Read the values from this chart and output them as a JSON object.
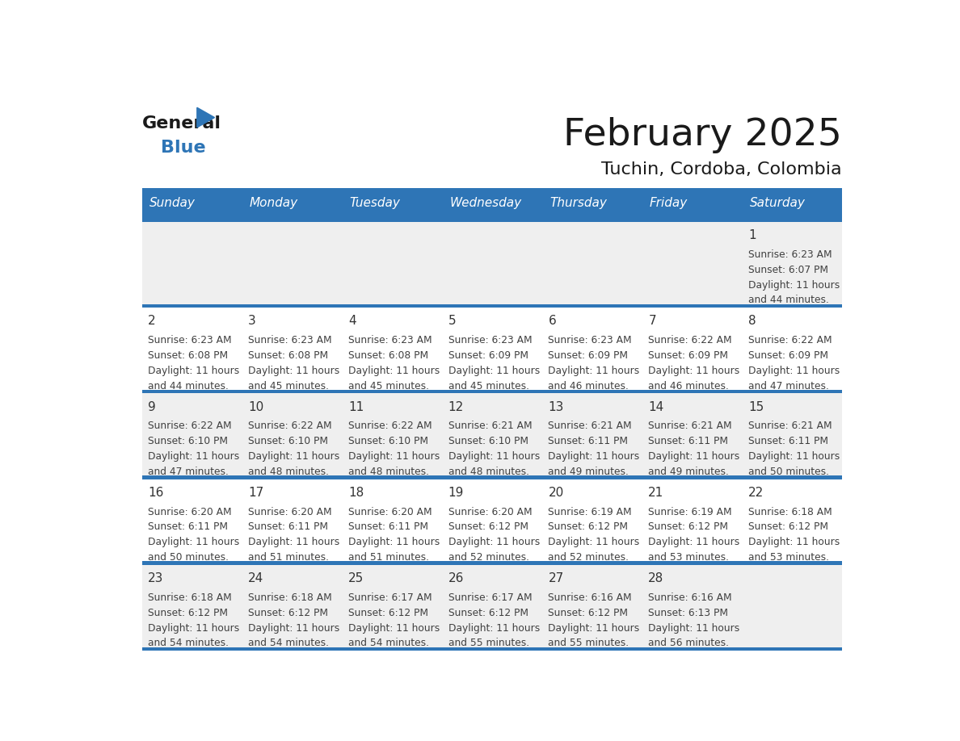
{
  "title": "February 2025",
  "subtitle": "Tuchin, Cordoba, Colombia",
  "days_of_week": [
    "Sunday",
    "Monday",
    "Tuesday",
    "Wednesday",
    "Thursday",
    "Friday",
    "Saturday"
  ],
  "header_bg": "#2E75B6",
  "header_text_color": "#FFFFFF",
  "cell_bg_odd": "#EFEFEF",
  "cell_bg_even": "#FFFFFF",
  "row_separator_color": "#2E75B6",
  "text_color": "#404040",
  "day_num_color": "#333333",
  "logo_general_color": "#1a1a1a",
  "logo_blue_color": "#2E75B6",
  "calendar_data": [
    [
      {
        "day": null,
        "sunrise": null,
        "sunset": null,
        "daylight_h": null,
        "daylight_m": null
      },
      {
        "day": null,
        "sunrise": null,
        "sunset": null,
        "daylight_h": null,
        "daylight_m": null
      },
      {
        "day": null,
        "sunrise": null,
        "sunset": null,
        "daylight_h": null,
        "daylight_m": null
      },
      {
        "day": null,
        "sunrise": null,
        "sunset": null,
        "daylight_h": null,
        "daylight_m": null
      },
      {
        "day": null,
        "sunrise": null,
        "sunset": null,
        "daylight_h": null,
        "daylight_m": null
      },
      {
        "day": null,
        "sunrise": null,
        "sunset": null,
        "daylight_h": null,
        "daylight_m": null
      },
      {
        "day": 1,
        "sunrise": "6:23 AM",
        "sunset": "6:07 PM",
        "daylight_h": "11 hours",
        "daylight_m": "44 minutes."
      }
    ],
    [
      {
        "day": 2,
        "sunrise": "6:23 AM",
        "sunset": "6:08 PM",
        "daylight_h": "11 hours",
        "daylight_m": "44 minutes."
      },
      {
        "day": 3,
        "sunrise": "6:23 AM",
        "sunset": "6:08 PM",
        "daylight_h": "11 hours",
        "daylight_m": "45 minutes."
      },
      {
        "day": 4,
        "sunrise": "6:23 AM",
        "sunset": "6:08 PM",
        "daylight_h": "11 hours",
        "daylight_m": "45 minutes."
      },
      {
        "day": 5,
        "sunrise": "6:23 AM",
        "sunset": "6:09 PM",
        "daylight_h": "11 hours",
        "daylight_m": "45 minutes."
      },
      {
        "day": 6,
        "sunrise": "6:23 AM",
        "sunset": "6:09 PM",
        "daylight_h": "11 hours",
        "daylight_m": "46 minutes."
      },
      {
        "day": 7,
        "sunrise": "6:22 AM",
        "sunset": "6:09 PM",
        "daylight_h": "11 hours",
        "daylight_m": "46 minutes."
      },
      {
        "day": 8,
        "sunrise": "6:22 AM",
        "sunset": "6:09 PM",
        "daylight_h": "11 hours",
        "daylight_m": "47 minutes."
      }
    ],
    [
      {
        "day": 9,
        "sunrise": "6:22 AM",
        "sunset": "6:10 PM",
        "daylight_h": "11 hours",
        "daylight_m": "47 minutes."
      },
      {
        "day": 10,
        "sunrise": "6:22 AM",
        "sunset": "6:10 PM",
        "daylight_h": "11 hours",
        "daylight_m": "48 minutes."
      },
      {
        "day": 11,
        "sunrise": "6:22 AM",
        "sunset": "6:10 PM",
        "daylight_h": "11 hours",
        "daylight_m": "48 minutes."
      },
      {
        "day": 12,
        "sunrise": "6:21 AM",
        "sunset": "6:10 PM",
        "daylight_h": "11 hours",
        "daylight_m": "48 minutes."
      },
      {
        "day": 13,
        "sunrise": "6:21 AM",
        "sunset": "6:11 PM",
        "daylight_h": "11 hours",
        "daylight_m": "49 minutes."
      },
      {
        "day": 14,
        "sunrise": "6:21 AM",
        "sunset": "6:11 PM",
        "daylight_h": "11 hours",
        "daylight_m": "49 minutes."
      },
      {
        "day": 15,
        "sunrise": "6:21 AM",
        "sunset": "6:11 PM",
        "daylight_h": "11 hours",
        "daylight_m": "50 minutes."
      }
    ],
    [
      {
        "day": 16,
        "sunrise": "6:20 AM",
        "sunset": "6:11 PM",
        "daylight_h": "11 hours",
        "daylight_m": "50 minutes."
      },
      {
        "day": 17,
        "sunrise": "6:20 AM",
        "sunset": "6:11 PM",
        "daylight_h": "11 hours",
        "daylight_m": "51 minutes."
      },
      {
        "day": 18,
        "sunrise": "6:20 AM",
        "sunset": "6:11 PM",
        "daylight_h": "11 hours",
        "daylight_m": "51 minutes."
      },
      {
        "day": 19,
        "sunrise": "6:20 AM",
        "sunset": "6:12 PM",
        "daylight_h": "11 hours",
        "daylight_m": "52 minutes."
      },
      {
        "day": 20,
        "sunrise": "6:19 AM",
        "sunset": "6:12 PM",
        "daylight_h": "11 hours",
        "daylight_m": "52 minutes."
      },
      {
        "day": 21,
        "sunrise": "6:19 AM",
        "sunset": "6:12 PM",
        "daylight_h": "11 hours",
        "daylight_m": "53 minutes."
      },
      {
        "day": 22,
        "sunrise": "6:18 AM",
        "sunset": "6:12 PM",
        "daylight_h": "11 hours",
        "daylight_m": "53 minutes."
      }
    ],
    [
      {
        "day": 23,
        "sunrise": "6:18 AM",
        "sunset": "6:12 PM",
        "daylight_h": "11 hours",
        "daylight_m": "54 minutes."
      },
      {
        "day": 24,
        "sunrise": "6:18 AM",
        "sunset": "6:12 PM",
        "daylight_h": "11 hours",
        "daylight_m": "54 minutes."
      },
      {
        "day": 25,
        "sunrise": "6:17 AM",
        "sunset": "6:12 PM",
        "daylight_h": "11 hours",
        "daylight_m": "54 minutes."
      },
      {
        "day": 26,
        "sunrise": "6:17 AM",
        "sunset": "6:12 PM",
        "daylight_h": "11 hours",
        "daylight_m": "55 minutes."
      },
      {
        "day": 27,
        "sunrise": "6:16 AM",
        "sunset": "6:12 PM",
        "daylight_h": "11 hours",
        "daylight_m": "55 minutes."
      },
      {
        "day": 28,
        "sunrise": "6:16 AM",
        "sunset": "6:13 PM",
        "daylight_h": "11 hours",
        "daylight_m": "56 minutes."
      },
      {
        "day": null,
        "sunrise": null,
        "sunset": null,
        "daylight_h": null,
        "daylight_m": null
      }
    ]
  ]
}
